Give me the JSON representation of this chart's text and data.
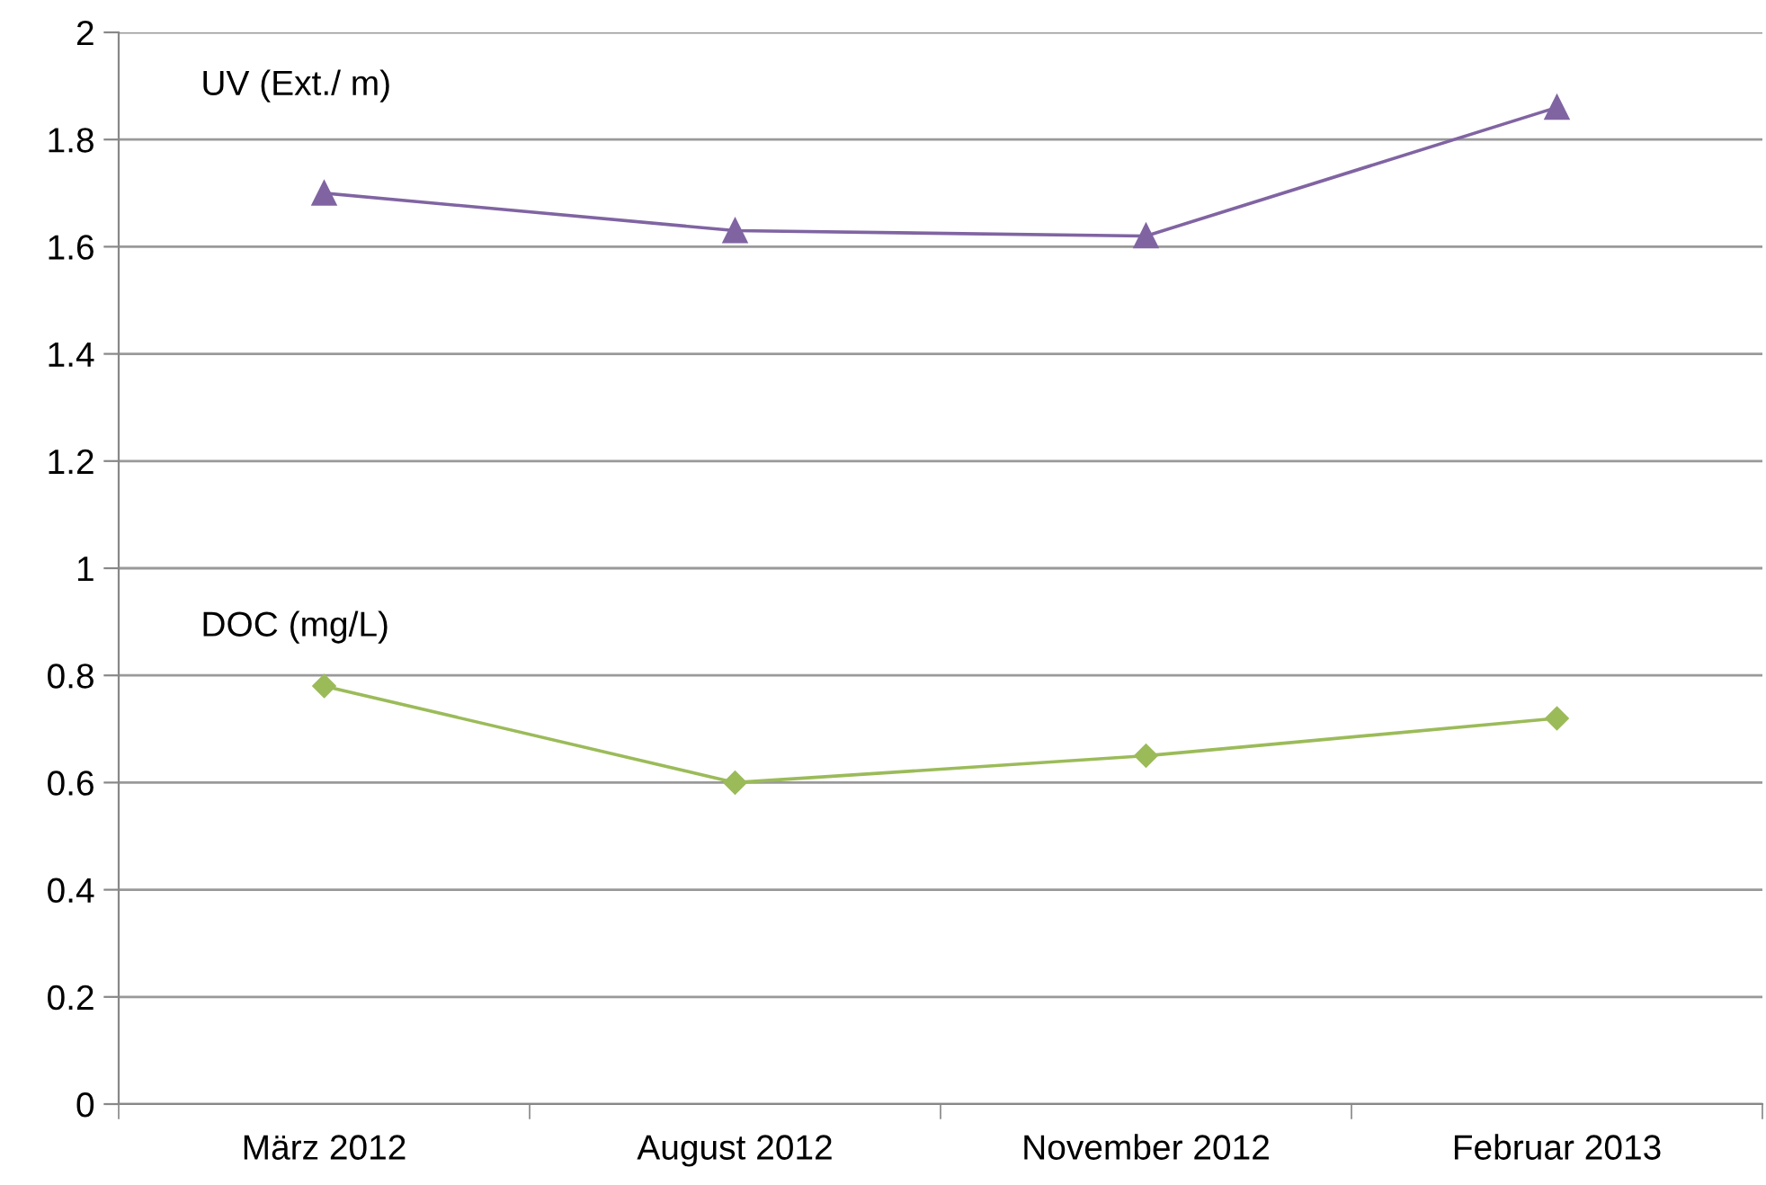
{
  "chart_data": {
    "type": "line",
    "categories": [
      "März 2012",
      "August 2012",
      "November 2012",
      "Februar 2013"
    ],
    "series": [
      {
        "name": "UV (Ext./ m)",
        "color": "#8064a2",
        "marker": "triangle",
        "values": [
          1.7,
          1.63,
          1.62,
          1.86
        ]
      },
      {
        "name": "DOC (mg/L)",
        "color": "#9bbb59",
        "marker": "diamond",
        "values": [
          0.78,
          0.6,
          0.65,
          0.72
        ]
      }
    ],
    "ylim": [
      0,
      2
    ],
    "yticks": [
      0,
      0.2,
      0.4,
      0.6,
      0.8,
      1,
      1.2,
      1.4,
      1.6,
      1.8,
      2
    ],
    "grid": "y",
    "line_style": "solid"
  }
}
